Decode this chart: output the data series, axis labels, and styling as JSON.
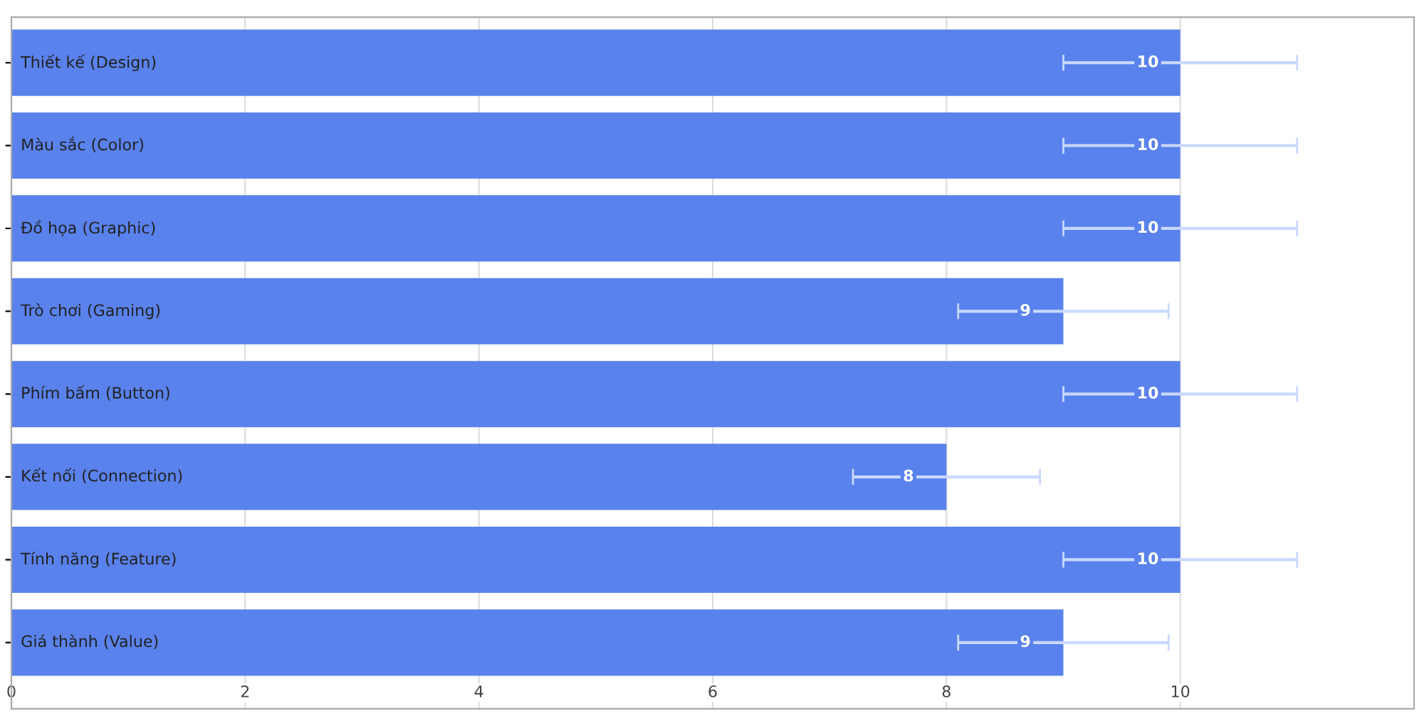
{
  "chart_data": {
    "type": "bar",
    "orientation": "horizontal",
    "categories": [
      "Thiết kế (Design)",
      "Màu sắc (Color)",
      "Đồ họa (Graphic)",
      "Trò chơi (Gaming)",
      "Phím bấm (Button)",
      "Kết nối (Connection)",
      "Tính năng (Feature)",
      "Giá thành (Value)"
    ],
    "values": [
      10,
      10,
      10,
      9,
      10,
      8,
      10,
      9
    ],
    "errors": [
      1,
      1,
      1,
      0.9,
      1,
      0.8,
      1,
      0.9
    ],
    "color": "#5a82ec",
    "xlim": [
      0,
      12
    ],
    "xticks": [
      0,
      2,
      4,
      6,
      8,
      10
    ],
    "grid": "x",
    "data_labels": true
  }
}
